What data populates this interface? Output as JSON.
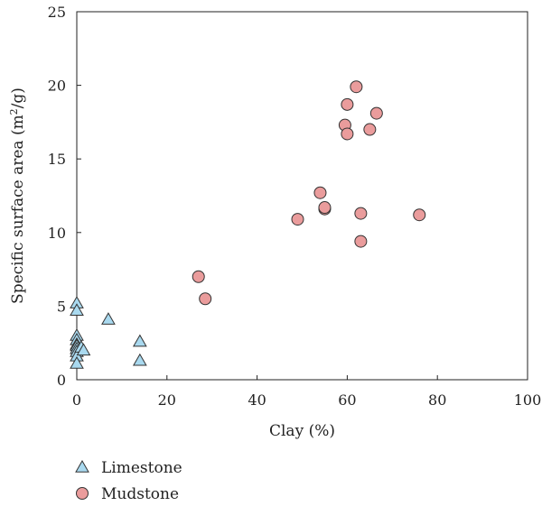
{
  "chart_data": {
    "type": "scatter",
    "title": "",
    "xlabel": "Clay (%)",
    "ylabel_main": "Specific surface area (m",
    "ylabel_sup": "2",
    "ylabel_end": "/g)",
    "xlim": [
      0,
      100
    ],
    "ylim": [
      0,
      25
    ],
    "xticks": [
      "0",
      "20",
      "40",
      "60",
      "80",
      "100"
    ],
    "yticks": [
      "0",
      "5",
      "10",
      "15",
      "20",
      "25"
    ],
    "grid": false,
    "legend_position": "bottom-left",
    "series": [
      {
        "name": "Limestone",
        "marker": "triangle",
        "color": "#a9d9ef",
        "points": [
          [
            0,
            5.2
          ],
          [
            0,
            4.7
          ],
          [
            0,
            3.0
          ],
          [
            0,
            2.7
          ],
          [
            0,
            2.4
          ],
          [
            0,
            2.3
          ],
          [
            0,
            2.1
          ],
          [
            0,
            1.9
          ],
          [
            0,
            1.6
          ],
          [
            0,
            1.1
          ],
          [
            1,
            2.2
          ],
          [
            1.5,
            2.0
          ],
          [
            7,
            4.1
          ],
          [
            14,
            2.6
          ],
          [
            14,
            1.3
          ]
        ]
      },
      {
        "name": "Mudstone",
        "marker": "circle",
        "color": "#ea9c9c",
        "points": [
          [
            27,
            7.0
          ],
          [
            28.5,
            5.5
          ],
          [
            49,
            10.9
          ],
          [
            54,
            12.7
          ],
          [
            55,
            11.6
          ],
          [
            55,
            11.7
          ],
          [
            59.5,
            17.3
          ],
          [
            60,
            18.7
          ],
          [
            60,
            16.7
          ],
          [
            62,
            19.9
          ],
          [
            63,
            11.3
          ],
          [
            63,
            9.4
          ],
          [
            65,
            17.0
          ],
          [
            66.5,
            18.1
          ],
          [
            76,
            11.2
          ]
        ]
      }
    ]
  }
}
